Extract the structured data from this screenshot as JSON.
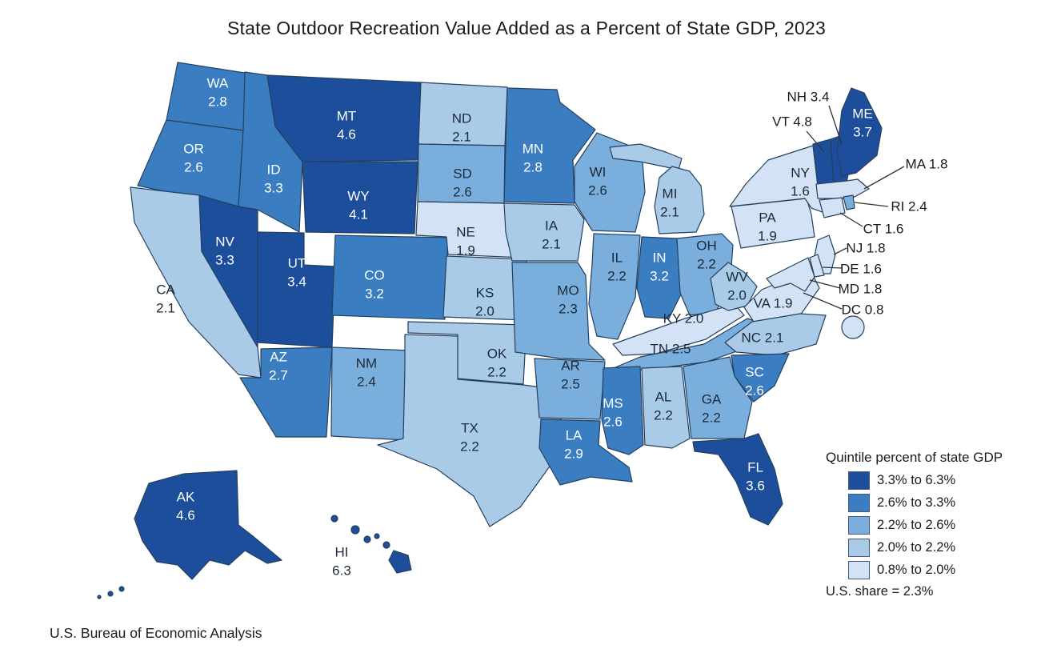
{
  "title": "State Outdoor Recreation Value Added as a Percent of State GDP, 2023",
  "source": "U.S. Bureau of Economic Analysis",
  "chart_data": {
    "type": "choropleth_map",
    "region": "United States",
    "unit": "percent of state GDP",
    "us_share_note": "U.S. share = 2.3%",
    "us_share_percent": 2.3,
    "stroke_color": "#25405f",
    "label_color_light": "#ffffff",
    "label_color_dark": "#1b2a3a",
    "legend": {
      "title": "Quintile percent of state GDP",
      "bins": [
        {
          "label": "3.3% to 6.3%",
          "color": "#1c4e9b"
        },
        {
          "label": "2.6% to 3.3%",
          "color": "#3a7ec1"
        },
        {
          "label": "2.2% to 2.6%",
          "color": "#7aaedc"
        },
        {
          "label": "2.0% to 2.2%",
          "color": "#aacbe8"
        },
        {
          "label": "0.8% to 2.0%",
          "color": "#d3e2f4"
        }
      ]
    },
    "states": [
      {
        "code": "WA",
        "value": 2.8,
        "bin": 1
      },
      {
        "code": "OR",
        "value": 2.6,
        "bin": 1
      },
      {
        "code": "CA",
        "value": 2.1,
        "bin": 3
      },
      {
        "code": "NV",
        "value": 3.3,
        "bin": 0
      },
      {
        "code": "ID",
        "value": 3.3,
        "bin": 1
      },
      {
        "code": "MT",
        "value": 4.6,
        "bin": 0
      },
      {
        "code": "WY",
        "value": 4.1,
        "bin": 0
      },
      {
        "code": "UT",
        "value": 3.4,
        "bin": 0
      },
      {
        "code": "CO",
        "value": 3.2,
        "bin": 1
      },
      {
        "code": "AZ",
        "value": 2.7,
        "bin": 1
      },
      {
        "code": "NM",
        "value": 2.4,
        "bin": 2
      },
      {
        "code": "ND",
        "value": 2.1,
        "bin": 3
      },
      {
        "code": "SD",
        "value": 2.6,
        "bin": 2
      },
      {
        "code": "NE",
        "value": 1.9,
        "bin": 4
      },
      {
        "code": "KS",
        "value": 2.0,
        "bin": 3
      },
      {
        "code": "OK",
        "value": 2.2,
        "bin": 3
      },
      {
        "code": "TX",
        "value": 2.2,
        "bin": 3
      },
      {
        "code": "MN",
        "value": 2.8,
        "bin": 1
      },
      {
        "code": "IA",
        "value": 2.1,
        "bin": 3
      },
      {
        "code": "MO",
        "value": 2.3,
        "bin": 2
      },
      {
        "code": "AR",
        "value": 2.5,
        "bin": 2
      },
      {
        "code": "LA",
        "value": 2.9,
        "bin": 1
      },
      {
        "code": "WI",
        "value": 2.6,
        "bin": 2
      },
      {
        "code": "IL",
        "value": 2.2,
        "bin": 2
      },
      {
        "code": "IN",
        "value": 3.2,
        "bin": 1
      },
      {
        "code": "MI",
        "value": 2.1,
        "bin": 3
      },
      {
        "code": "OH",
        "value": 2.2,
        "bin": 2
      },
      {
        "code": "KY",
        "value": 2.0,
        "bin": 4
      },
      {
        "code": "TN",
        "value": 2.5,
        "bin": 2
      },
      {
        "code": "WV",
        "value": 2.0,
        "bin": 3
      },
      {
        "code": "VA",
        "value": 1.9,
        "bin": 4
      },
      {
        "code": "NC",
        "value": 2.1,
        "bin": 3
      },
      {
        "code": "SC",
        "value": 2.6,
        "bin": 1
      },
      {
        "code": "GA",
        "value": 2.2,
        "bin": 2
      },
      {
        "code": "AL",
        "value": 2.2,
        "bin": 3
      },
      {
        "code": "MS",
        "value": 2.6,
        "bin": 1
      },
      {
        "code": "FL",
        "value": 3.6,
        "bin": 0
      },
      {
        "code": "PA",
        "value": 1.9,
        "bin": 4
      },
      {
        "code": "NY",
        "value": 1.6,
        "bin": 4
      },
      {
        "code": "VT",
        "value": 4.8,
        "bin": 0
      },
      {
        "code": "NH",
        "value": 3.4,
        "bin": 0
      },
      {
        "code": "ME",
        "value": 3.7,
        "bin": 0
      },
      {
        "code": "MA",
        "value": 1.8,
        "bin": 4
      },
      {
        "code": "RI",
        "value": 2.4,
        "bin": 2
      },
      {
        "code": "CT",
        "value": 1.6,
        "bin": 4
      },
      {
        "code": "NJ",
        "value": 1.8,
        "bin": 4
      },
      {
        "code": "DE",
        "value": 1.6,
        "bin": 4
      },
      {
        "code": "MD",
        "value": 1.8,
        "bin": 4
      },
      {
        "code": "DC",
        "value": 0.8,
        "bin": 4
      },
      {
        "code": "AK",
        "value": 4.6,
        "bin": 0
      },
      {
        "code": "HI",
        "value": 6.3,
        "bin": 0
      }
    ]
  }
}
